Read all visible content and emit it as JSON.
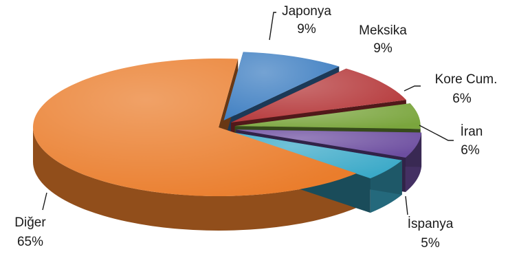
{
  "chart_data": {
    "type": "pie",
    "title": "",
    "style": "3d-exploded",
    "slices": [
      {
        "label": "Japonya",
        "value": 9,
        "value_label": "9%",
        "color": "#3f7fc2"
      },
      {
        "label": "Meksika",
        "value": 9,
        "value_label": "9%",
        "color": "#b5383a"
      },
      {
        "label": "Kore Cum.",
        "value": 6,
        "value_label": "6%",
        "color": "#7aa53d"
      },
      {
        "label": "İran",
        "value": 6,
        "value_label": "6%",
        "color": "#6d4ea0"
      },
      {
        "label": "İspanya",
        "value": 5,
        "value_label": "5%",
        "color": "#3aa9c8"
      },
      {
        "label": "Diğer",
        "value": 65,
        "value_label": "65%",
        "color": "#ea7d2c"
      }
    ]
  }
}
